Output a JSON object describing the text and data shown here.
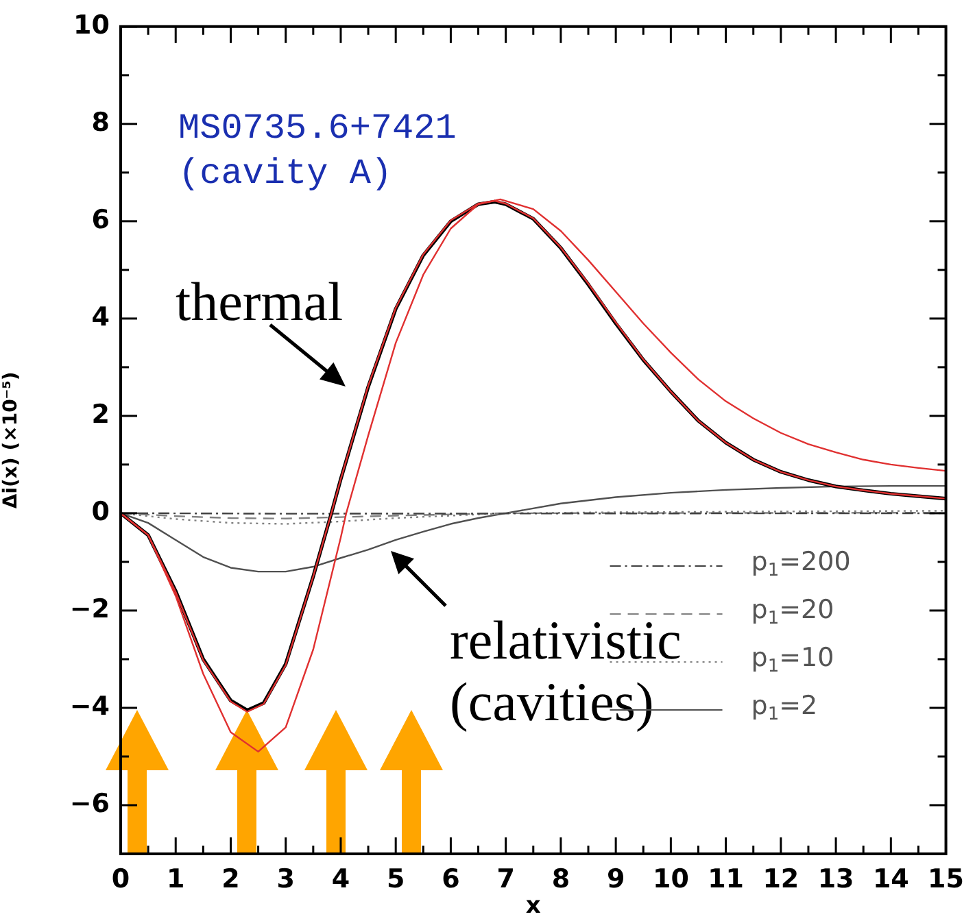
{
  "chart_data": {
    "type": "line",
    "xlabel": "x",
    "ylabel": "Δi(x) (×10⁻⁵)",
    "xlim": [
      0,
      15
    ],
    "xticks": [
      0,
      {
        "value": 0.5,
        "label": null
      },
      1,
      {
        "value": 1.5,
        "label": null
      },
      2,
      {
        "value": 2.5,
        "label": null
      },
      3,
      {
        "value": 3.5,
        "label": null
      },
      4,
      {
        "value": 4.5,
        "label": null
      },
      5,
      {
        "value": 5.5,
        "label": null
      },
      6,
      {
        "value": 6.5,
        "label": null
      },
      7,
      {
        "value": 7.5,
        "label": null
      },
      8,
      {
        "value": 8.5,
        "label": null
      },
      9,
      {
        "value": 9.5,
        "label": null
      },
      10,
      {
        "value": 10.5,
        "label": null
      },
      11,
      {
        "value": 11.5,
        "label": null
      },
      12,
      {
        "value": 12.5,
        "label": null
      },
      13,
      {
        "value": 13.5,
        "label": null
      },
      14,
      {
        "value": 14.5,
        "label": null
      },
      15
    ],
    "ylim": [
      -7,
      10
    ],
    "yticks": [
      -6,
      {
        "value": -5,
        "label": null
      },
      -4,
      {
        "value": -3,
        "label": null
      },
      -2,
      {
        "value": -1,
        "label": null
      },
      0,
      {
        "value": 1,
        "label": null
      },
      2,
      {
        "value": 3,
        "label": null
      },
      4,
      {
        "value": 5,
        "label": null
      },
      6,
      {
        "value": 7,
        "label": null
      },
      8,
      {
        "value": 9,
        "label": null
      },
      10
    ],
    "grid": false,
    "legend": "bottom right",
    "marker": "none",
    "annotations": [
      "MS0735.6+7421",
      "(cavity A)",
      "thermal",
      "relativistic\n(cavities)"
    ],
    "series": [
      {
        "color": "#e03030",
        "line_style": "solid",
        "x": [
          0,
          0.5,
          1,
          1.5,
          2,
          2.5,
          3,
          3.5,
          4,
          4.1,
          4.5,
          5,
          5.5,
          6,
          6.5,
          6.9,
          7.5,
          8,
          8.5,
          9,
          9.5,
          10,
          10.5,
          11,
          11.5,
          12,
          12.5,
          13,
          13.5,
          14,
          14.5,
          15
        ],
        "values": [
          0,
          -0.45,
          -1.7,
          -3.3,
          -4.5,
          -4.9,
          -4.4,
          -2.8,
          -0.5,
          0,
          1.6,
          3.5,
          4.9,
          5.85,
          6.35,
          6.45,
          6.25,
          5.8,
          5.2,
          4.55,
          3.9,
          3.3,
          2.75,
          2.3,
          1.95,
          1.65,
          1.42,
          1.25,
          1.1,
          1.0,
          0.93,
          0.87
        ]
      },
      {
        "color": "#e03030",
        "line_style": "solid",
        "x": [
          0,
          0.5,
          1,
          1.5,
          2,
          2.3,
          2.6,
          3,
          3.5,
          3.83,
          4,
          4.5,
          5,
          5.5,
          6,
          6.5,
          6.8,
          7,
          7.5,
          8,
          8.5,
          9,
          9.5,
          10,
          10.5,
          11,
          11.5,
          12,
          12.5,
          13,
          13.5,
          14,
          14.5,
          15
        ],
        "values": [
          0,
          -0.45,
          -1.62,
          -3.02,
          -3.87,
          -4.08,
          -3.92,
          -3.12,
          -1.3,
          0,
          0.7,
          2.62,
          4.22,
          5.32,
          6.02,
          6.36,
          6.42,
          6.36,
          6.06,
          5.46,
          4.72,
          3.92,
          3.16,
          2.5,
          1.9,
          1.45,
          1.1,
          0.85,
          0.68,
          0.55,
          0.47,
          0.4,
          0.35,
          0.3
        ]
      },
      {
        "color": "#000000",
        "line_style": "solid",
        "x": [
          0,
          0.5,
          1,
          1.5,
          2,
          2.3,
          2.6,
          3,
          3.5,
          3.83,
          4,
          4.5,
          5,
          5.5,
          6,
          6.5,
          6.8,
          7,
          7.5,
          8,
          8.5,
          9,
          9.5,
          10,
          10.5,
          11,
          11.5,
          12,
          12.5,
          13,
          13.5,
          14,
          14.5,
          15
        ],
        "values": [
          0,
          -0.45,
          -1.6,
          -3.0,
          -3.85,
          -4.05,
          -3.9,
          -3.1,
          -1.3,
          0,
          0.7,
          2.6,
          4.2,
          5.3,
          6.0,
          6.35,
          6.4,
          6.35,
          6.05,
          5.45,
          4.7,
          3.9,
          3.15,
          2.5,
          1.9,
          1.45,
          1.1,
          0.85,
          0.68,
          0.55,
          0.47,
          0.4,
          0.35,
          0.3
        ]
      },
      {
        "name": "p$_{1}$=200",
        "color": "#404040",
        "line_style": "dashdot",
        "x": [
          0.3,
          3,
          15
        ],
        "values": [
          0,
          -0.01,
          0
        ]
      },
      {
        "name": "p$_{1}$=20",
        "color": "#808080",
        "line_style": "dashed",
        "x": [
          0,
          1,
          2,
          3,
          4,
          5,
          7,
          14.7
        ],
        "values": [
          0,
          -0.06,
          -0.1,
          -0.11,
          -0.08,
          -0.05,
          0,
          0.01
        ]
      },
      {
        "name": "p$_{1}$=10",
        "color": "#808080",
        "line_style": "dotted",
        "x": [
          0,
          1,
          2,
          3,
          4,
          5,
          6,
          7,
          9,
          15
        ],
        "values": [
          0,
          -0.12,
          -0.2,
          -0.22,
          -0.17,
          -0.1,
          -0.05,
          0,
          0.02,
          0.05
        ]
      },
      {
        "name": "p$_{1}$=2",
        "color": "#505050",
        "line_style": "solid",
        "x": [
          0,
          0.5,
          1,
          1.5,
          2,
          2.5,
          3,
          3.5,
          4,
          4.5,
          5,
          5.5,
          6,
          6.5,
          7,
          8,
          9,
          10,
          11,
          12,
          13,
          14,
          15
        ],
        "values": [
          0,
          -0.2,
          -0.55,
          -0.9,
          -1.12,
          -1.2,
          -1.2,
          -1.1,
          -0.92,
          -0.75,
          -0.55,
          -0.38,
          -0.22,
          -0.1,
          0,
          0.2,
          0.33,
          0.42,
          0.48,
          0.52,
          0.55,
          0.56,
          0.56
        ]
      }
    ]
  }
}
